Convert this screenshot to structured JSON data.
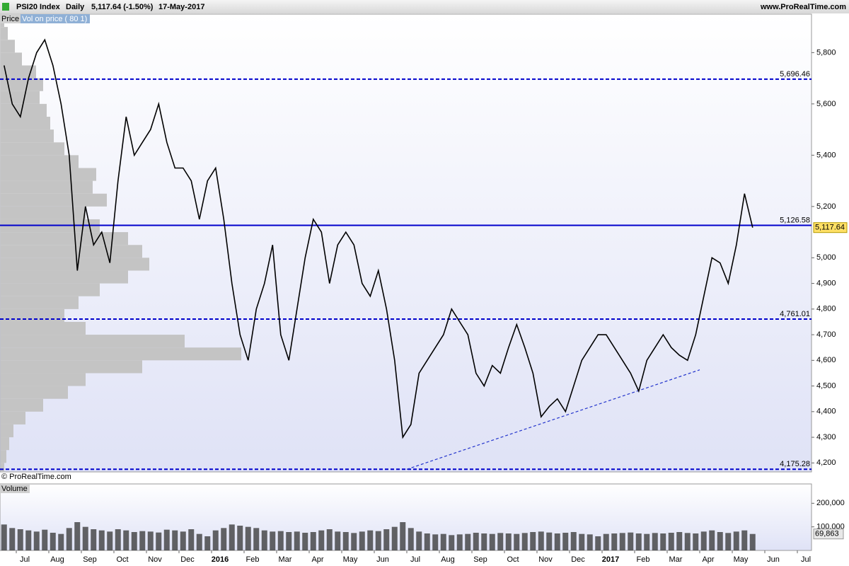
{
  "header": {
    "symbol": "PSI20 Index",
    "period": "Daily",
    "quote": "5,117.64 (-1.50%)",
    "date": "17-May-2017",
    "site": "www.ProRealTime.com"
  },
  "chart_data": [
    {
      "type": "line",
      "panel_label": "Price",
      "profile_label": "Vol on price ( 80 1)",
      "copyright": "© ProRealTime.com",
      "color": "#000000",
      "x": [
        "2015-06",
        "2015-06",
        "2015-07",
        "2015-07",
        "2015-07",
        "2015-07",
        "2015-08",
        "2015-08",
        "2015-08",
        "2015-08",
        "2015-09",
        "2015-09",
        "2015-09",
        "2015-09",
        "2015-10",
        "2015-10",
        "2015-10",
        "2015-10",
        "2015-11",
        "2015-11",
        "2015-11",
        "2015-11",
        "2015-12",
        "2015-12",
        "2015-12",
        "2015-12",
        "2016-01",
        "2016-01",
        "2016-01",
        "2016-01",
        "2016-02",
        "2016-02",
        "2016-02",
        "2016-02",
        "2016-03",
        "2016-03",
        "2016-03",
        "2016-03",
        "2016-04",
        "2016-04",
        "2016-04",
        "2016-04",
        "2016-05",
        "2016-05",
        "2016-05",
        "2016-05",
        "2016-06",
        "2016-06",
        "2016-06",
        "2016-06",
        "2016-07",
        "2016-07",
        "2016-07",
        "2016-07",
        "2016-08",
        "2016-08",
        "2016-08",
        "2016-08",
        "2016-09",
        "2016-09",
        "2016-09",
        "2016-09",
        "2016-10",
        "2016-10",
        "2016-10",
        "2016-10",
        "2016-11",
        "2016-11",
        "2016-11",
        "2016-11",
        "2016-12",
        "2016-12",
        "2016-12",
        "2016-12",
        "2017-01",
        "2017-01",
        "2017-01",
        "2017-01",
        "2017-02",
        "2017-02",
        "2017-02",
        "2017-02",
        "2017-03",
        "2017-03",
        "2017-03",
        "2017-03",
        "2017-04",
        "2017-04",
        "2017-04",
        "2017-04",
        "2017-05",
        "2017-05",
        "2017-05"
      ],
      "values": [
        5750,
        5600,
        5550,
        5700,
        5800,
        5850,
        5750,
        5600,
        5400,
        4950,
        5200,
        5050,
        5100,
        4980,
        5300,
        5550,
        5400,
        5450,
        5500,
        5600,
        5450,
        5350,
        5350,
        5300,
        5150,
        5300,
        5350,
        5150,
        4900,
        4700,
        4600,
        4800,
        4900,
        5050,
        4700,
        4600,
        4800,
        5000,
        5150,
        5100,
        4900,
        5050,
        5100,
        5050,
        4900,
        4850,
        4950,
        4800,
        4600,
        4300,
        4350,
        4550,
        4600,
        4650,
        4700,
        4800,
        4750,
        4700,
        4550,
        4500,
        4580,
        4550,
        4650,
        4740,
        4650,
        4550,
        4380,
        4420,
        4450,
        4400,
        4500,
        4600,
        4650,
        4700,
        4700,
        4650,
        4600,
        4550,
        4480,
        4600,
        4650,
        4700,
        4650,
        4620,
        4600,
        4700,
        4850,
        5000,
        4980,
        4900,
        5050,
        5250,
        5117.64
      ],
      "last_value_label": "5,117.64",
      "ylim": [
        4165,
        5950
      ],
      "yticks": [
        {
          "value": 4200,
          "label": "4,200"
        },
        {
          "value": 4300,
          "label": "4,300"
        },
        {
          "value": 4400,
          "label": "4,400"
        },
        {
          "value": 4500,
          "label": "4,500"
        },
        {
          "value": 4600,
          "label": "4,600"
        },
        {
          "value": 4700,
          "label": "4,700"
        },
        {
          "value": 4800,
          "label": "4,800"
        },
        {
          "value": 4900,
          "label": "4,900"
        },
        {
          "value": 5000,
          "label": "5,000"
        },
        {
          "value": 5200,
          "label": "5,200"
        },
        {
          "value": 5400,
          "label": "5,400"
        },
        {
          "value": 5600,
          "label": "5,600"
        },
        {
          "value": 5800,
          "label": "5,800"
        }
      ],
      "xticks": [
        {
          "value": "2015-07",
          "label": "Jul"
        },
        {
          "value": "2015-08",
          "label": "Aug"
        },
        {
          "value": "2015-09",
          "label": "Sep"
        },
        {
          "value": "2015-10",
          "label": "Oct"
        },
        {
          "value": "2015-11",
          "label": "Nov"
        },
        {
          "value": "2015-12",
          "label": "Dec"
        },
        {
          "value": "2016-01",
          "label": "2016"
        },
        {
          "value": "2016-02",
          "label": "Feb"
        },
        {
          "value": "2016-03",
          "label": "Mar"
        },
        {
          "value": "2016-04",
          "label": "Apr"
        },
        {
          "value": "2016-05",
          "label": "May"
        },
        {
          "value": "2016-06",
          "label": "Jun"
        },
        {
          "value": "2016-07",
          "label": "Jul"
        },
        {
          "value": "2016-08",
          "label": "Aug"
        },
        {
          "value": "2016-09",
          "label": "Sep"
        },
        {
          "value": "2016-10",
          "label": "Oct"
        },
        {
          "value": "2016-11",
          "label": "Nov"
        },
        {
          "value": "2016-12",
          "label": "Dec"
        },
        {
          "value": "2017-01",
          "label": "2017"
        },
        {
          "value": "2017-02",
          "label": "Feb"
        },
        {
          "value": "2017-03",
          "label": "Mar"
        },
        {
          "value": "2017-04",
          "label": "Apr"
        },
        {
          "value": "2017-05",
          "label": "May"
        },
        {
          "value": "2017-06",
          "label": "Jun"
        },
        {
          "value": "2017-07",
          "label": "Jul"
        }
      ],
      "levels": [
        {
          "value": 5696.46,
          "label": "5,696.46",
          "style": "dashed"
        },
        {
          "value": 5126.58,
          "label": "5,126.58",
          "style": "solid"
        },
        {
          "value": 4761.01,
          "label": "4,761.01",
          "style": "dashed"
        },
        {
          "value": 4175.28,
          "label": "4,175.28",
          "style": "dashed"
        }
      ],
      "level_color": "#0000cc",
      "trend_line": {
        "x": [
          "2016-07",
          "2017-04"
        ],
        "values": [
          4175,
          4563
        ]
      },
      "volume_profile": {
        "color": "#c4c4c4",
        "bins": [
          4150,
          4200,
          4250,
          4300,
          4350,
          4400,
          4450,
          4500,
          4550,
          4600,
          4650,
          4700,
          4750,
          4800,
          4850,
          4900,
          4950,
          5000,
          5050,
          5100,
          5150,
          5200,
          5250,
          5300,
          5350,
          5400,
          5450,
          5500,
          5550,
          5600,
          5650,
          5700,
          5750,
          5800,
          5850,
          5900,
          5950
        ],
        "values": [
          5,
          8,
          12,
          18,
          35,
          60,
          95,
          120,
          200,
          340,
          260,
          120,
          90,
          110,
          140,
          180,
          210,
          200,
          180,
          140,
          120,
          150,
          130,
          135,
          110,
          90,
          75,
          70,
          65,
          55,
          60,
          50,
          30,
          20,
          10,
          5
        ]
      }
    },
    {
      "type": "bar",
      "panel_label": "Volume",
      "color": "#333333",
      "x": [
        "2015-06",
        "2015-06",
        "2015-07",
        "2015-07",
        "2015-07",
        "2015-07",
        "2015-08",
        "2015-08",
        "2015-08",
        "2015-08",
        "2015-09",
        "2015-09",
        "2015-09",
        "2015-09",
        "2015-10",
        "2015-10",
        "2015-10",
        "2015-10",
        "2015-11",
        "2015-11",
        "2015-11",
        "2015-11",
        "2015-12",
        "2015-12",
        "2015-12",
        "2015-12",
        "2016-01",
        "2016-01",
        "2016-01",
        "2016-01",
        "2016-02",
        "2016-02",
        "2016-02",
        "2016-02",
        "2016-03",
        "2016-03",
        "2016-03",
        "2016-03",
        "2016-04",
        "2016-04",
        "2016-04",
        "2016-04",
        "2016-05",
        "2016-05",
        "2016-05",
        "2016-05",
        "2016-06",
        "2016-06",
        "2016-06",
        "2016-06",
        "2016-07",
        "2016-07",
        "2016-07",
        "2016-07",
        "2016-08",
        "2016-08",
        "2016-08",
        "2016-08",
        "2016-09",
        "2016-09",
        "2016-09",
        "2016-09",
        "2016-10",
        "2016-10",
        "2016-10",
        "2016-10",
        "2016-11",
        "2016-11",
        "2016-11",
        "2016-11",
        "2016-12",
        "2016-12",
        "2016-12",
        "2016-12",
        "2017-01",
        "2017-01",
        "2017-01",
        "2017-01",
        "2017-02",
        "2017-02",
        "2017-02",
        "2017-02",
        "2017-03",
        "2017-03",
        "2017-03",
        "2017-03",
        "2017-04",
        "2017-04",
        "2017-04",
        "2017-04",
        "2017-05",
        "2017-05",
        "2017-05"
      ],
      "values": [
        110000,
        95000,
        90000,
        85000,
        80000,
        88000,
        75000,
        70000,
        95000,
        120000,
        100000,
        90000,
        85000,
        80000,
        90000,
        85000,
        78000,
        82000,
        80000,
        76000,
        88000,
        85000,
        80000,
        90000,
        70000,
        60000,
        85000,
        95000,
        110000,
        105000,
        100000,
        95000,
        85000,
        80000,
        82000,
        78000,
        80000,
        75000,
        78000,
        85000,
        90000,
        80000,
        78000,
        74000,
        80000,
        85000,
        82000,
        90000,
        100000,
        120000,
        95000,
        80000,
        72000,
        68000,
        70000,
        65000,
        68000,
        70000,
        75000,
        72000,
        70000,
        74000,
        72000,
        70000,
        74000,
        78000,
        80000,
        76000,
        72000,
        75000,
        78000,
        70000,
        68000,
        60000,
        70000,
        72000,
        74000,
        76000,
        72000,
        70000,
        74000,
        72000,
        75000,
        78000,
        74000,
        72000,
        80000,
        85000,
        78000,
        74000,
        80000,
        85000,
        69863
      ],
      "last_value_label": "69,863",
      "ylim": [
        0,
        282000
      ],
      "yticks": [
        {
          "value": 100000,
          "label": "100,000"
        },
        {
          "value": 200000,
          "label": "200,000"
        }
      ]
    }
  ]
}
